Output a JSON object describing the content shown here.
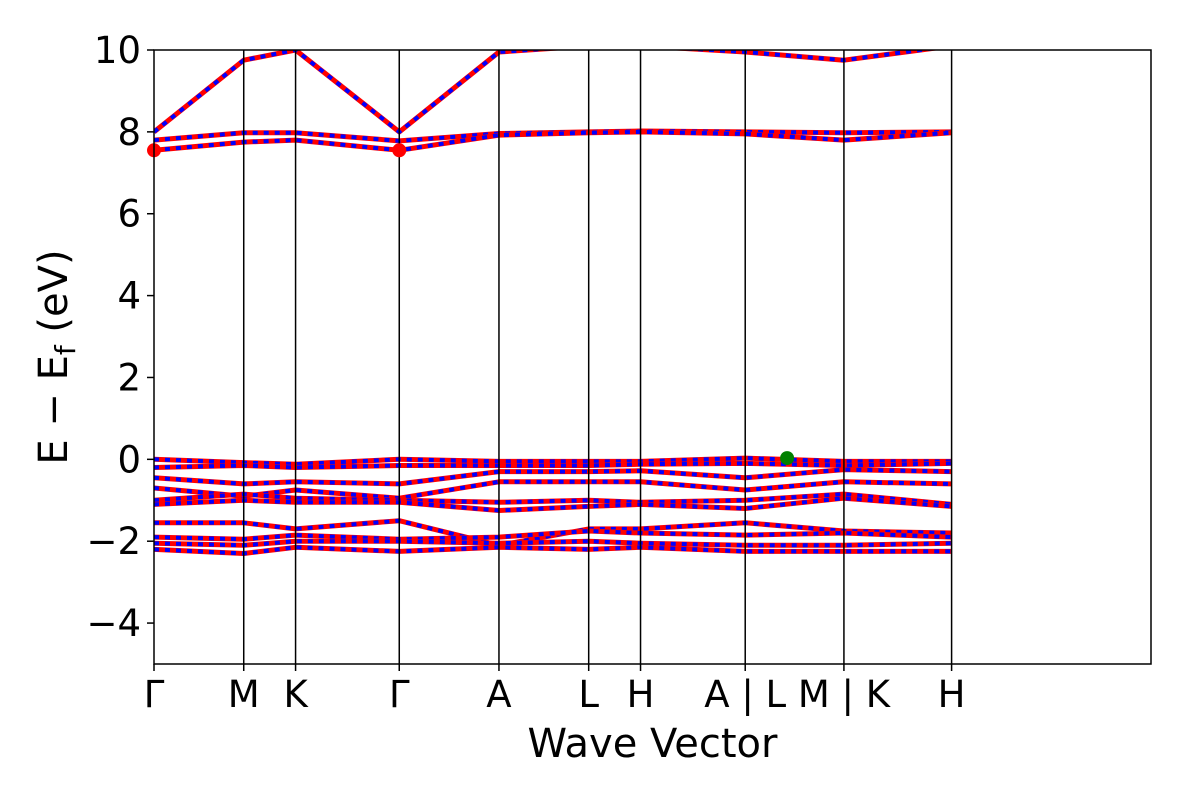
{
  "chart_data": {
    "type": "line",
    "title": "",
    "xlabel": "Wave Vector",
    "ylabel": {
      "prefix": "E − E",
      "subscript": "f",
      "suffix": " (eV)"
    },
    "ylim": [
      -5,
      10
    ],
    "yticks": [
      -4,
      -2,
      0,
      2,
      4,
      6,
      8,
      10
    ],
    "ytick_labels": [
      "−4",
      "−2",
      "0",
      "2",
      "4",
      "6",
      "8",
      "10"
    ],
    "xlim": [
      0,
      10
    ],
    "kpoints": [
      {
        "label": "Γ",
        "x": 0
      },
      {
        "label": "M",
        "x": 0.9
      },
      {
        "label": "K",
        "x": 1.42
      },
      {
        "label": "Γ",
        "x": 2.46
      },
      {
        "label": "A",
        "x": 3.46
      },
      {
        "label": "L",
        "x": 4.36
      },
      {
        "label": "H",
        "x": 4.88
      },
      {
        "label": "A | L",
        "x": 5.93
      },
      {
        "label": "M | K",
        "x": 6.92
      },
      {
        "label": "H",
        "x": 8.0
      }
    ],
    "grid": false,
    "legend": "none",
    "colors": {
      "spin_up": "#ff0000",
      "spin_down": "#0000ff",
      "vbm": "#008000",
      "cbm": "#ff0000",
      "kline": "#000000"
    },
    "series": [
      {
        "x": [
          0,
          0.9,
          1.42,
          2.46,
          3.46,
          4.36,
          4.88,
          5.93,
          6.92,
          8.0
        ],
        "values": [
          8.0,
          9.75,
          10.0,
          8.0,
          9.95,
          10.1,
          10.1,
          9.95,
          9.75,
          10.1
        ]
      },
      {
        "x": [
          0,
          0.9,
          1.42,
          2.46,
          3.46,
          4.36,
          4.88,
          5.93,
          6.92,
          8.0
        ],
        "values": [
          7.8,
          7.98,
          7.98,
          7.78,
          7.96,
          8.0,
          8.02,
          8.0,
          7.98,
          8.0
        ]
      },
      {
        "x": [
          0,
          0.9,
          1.42,
          2.46,
          3.46,
          4.36,
          4.88,
          5.93,
          6.92,
          8.0
        ],
        "values": [
          7.55,
          7.75,
          7.8,
          7.55,
          7.92,
          7.98,
          8.0,
          7.95,
          7.8,
          7.98
        ]
      },
      {
        "x": [
          0,
          0.9,
          1.42,
          2.46,
          3.46,
          4.36,
          4.88,
          5.93,
          6.92,
          8.0
        ],
        "values": [
          0.0,
          -0.08,
          -0.12,
          0.0,
          -0.05,
          -0.05,
          -0.05,
          0.03,
          -0.05,
          -0.05
        ]
      },
      {
        "x": [
          0,
          0.9,
          1.42,
          2.46,
          3.46,
          4.36,
          4.88,
          5.93,
          6.92,
          8.0
        ],
        "values": [
          -0.2,
          -0.15,
          -0.2,
          -0.15,
          -0.15,
          -0.15,
          -0.12,
          -0.1,
          -0.15,
          -0.1
        ]
      },
      {
        "x": [
          0,
          0.9,
          1.42,
          2.46,
          3.46,
          4.36,
          4.88,
          5.93,
          6.92,
          8.0
        ],
        "values": [
          -0.45,
          -0.6,
          -0.55,
          -0.6,
          -0.3,
          -0.3,
          -0.28,
          -0.45,
          -0.25,
          -0.3
        ]
      },
      {
        "x": [
          0,
          0.9,
          1.42,
          2.46,
          3.46,
          4.36,
          4.88,
          5.93,
          6.92,
          8.0
        ],
        "values": [
          -0.7,
          -0.9,
          -0.75,
          -0.95,
          -0.55,
          -0.55,
          -0.55,
          -0.75,
          -0.55,
          -0.6
        ]
      },
      {
        "x": [
          0,
          0.9,
          1.42,
          2.46,
          3.46,
          4.36,
          4.88,
          5.93,
          6.92,
          8.0
        ],
        "values": [
          -1.0,
          -0.85,
          -0.95,
          -1.0,
          -1.05,
          -1.0,
          -1.05,
          -1.0,
          -0.85,
          -1.1
        ]
      },
      {
        "x": [
          0,
          0.9,
          1.42,
          2.46,
          3.46,
          4.36,
          4.88,
          5.93,
          6.92,
          8.0
        ],
        "values": [
          -1.1,
          -1.0,
          -1.05,
          -1.05,
          -1.25,
          -1.15,
          -1.1,
          -1.2,
          -0.95,
          -1.15
        ]
      },
      {
        "x": [
          0,
          0.9,
          1.42,
          2.46,
          3.46,
          4.36,
          4.88,
          5.93,
          6.92,
          8.0
        ],
        "values": [
          -1.55,
          -1.55,
          -1.7,
          -1.5,
          -2.1,
          -1.7,
          -1.7,
          -1.55,
          -1.75,
          -1.8
        ]
      },
      {
        "x": [
          0,
          0.9,
          1.42,
          2.46,
          3.46,
          4.36,
          4.88,
          5.93,
          6.92,
          8.0
        ],
        "values": [
          -1.9,
          -1.95,
          -1.85,
          -1.95,
          -1.9,
          -1.75,
          -1.8,
          -1.85,
          -1.8,
          -1.9
        ]
      },
      {
        "x": [
          0,
          0.9,
          1.42,
          2.46,
          3.46,
          4.36,
          4.88,
          5.93,
          6.92,
          8.0
        ],
        "values": [
          -2.05,
          -2.1,
          -2.0,
          -2.0,
          -2.05,
          -2.0,
          -2.05,
          -2.1,
          -2.1,
          -2.05
        ]
      },
      {
        "x": [
          0,
          0.9,
          1.42,
          2.46,
          3.46,
          4.36,
          4.88,
          5.93,
          6.92,
          8.0
        ],
        "values": [
          -2.2,
          -2.3,
          -2.15,
          -2.25,
          -2.15,
          -2.2,
          -2.15,
          -2.25,
          -2.25,
          -2.25
        ]
      }
    ],
    "markers": [
      {
        "name": "CBM",
        "x": 0,
        "y": 7.55,
        "color": "#ff0000"
      },
      {
        "name": "CBM",
        "x": 2.46,
        "y": 7.55,
        "color": "#ff0000"
      },
      {
        "name": "VBM",
        "x": 6.35,
        "y": 0.03,
        "color": "#008000"
      }
    ]
  }
}
